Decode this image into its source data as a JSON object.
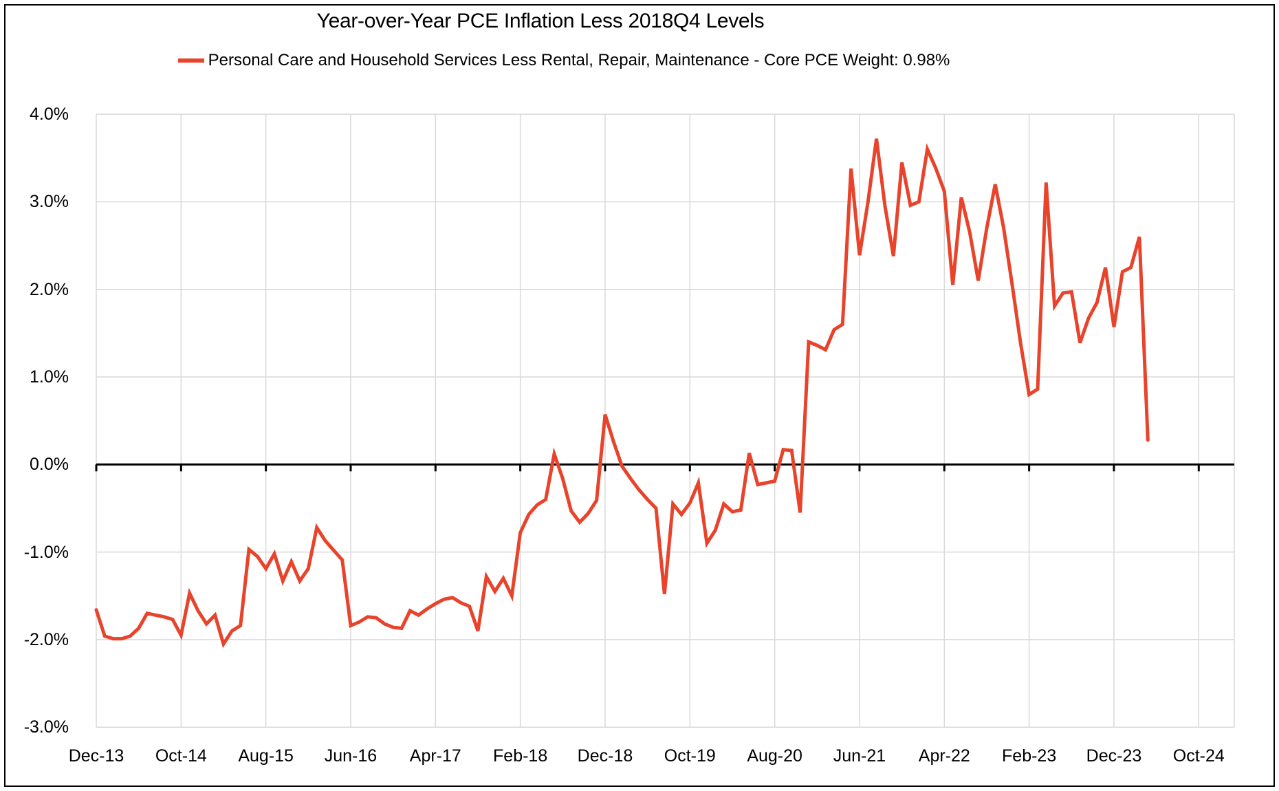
{
  "title": "Year-over-Year PCE Inflation Less 2018Q4 Levels",
  "legend": {
    "label": "Personal Care and Household Services Less Rental, Repair, Maintenance - Core PCE Weight: 0.98%",
    "color": "#E8432B"
  },
  "chart_data": {
    "type": "line",
    "title": "Year-over-Year PCE Inflation Less 2018Q4 Levels",
    "xlabel": "",
    "ylabel": "",
    "grid": true,
    "zero_axis": true,
    "legend_position": "top",
    "ylim": [
      -3.0,
      4.0
    ],
    "y_ticks": [
      {
        "value": 4.0,
        "label": "4.0%"
      },
      {
        "value": 3.0,
        "label": "3.0%"
      },
      {
        "value": 2.0,
        "label": "2.0%"
      },
      {
        "value": 1.0,
        "label": "1.0%"
      },
      {
        "value": 0.0,
        "label": "0.0%"
      },
      {
        "value": -1.0,
        "label": "-1.0%"
      },
      {
        "value": -2.0,
        "label": "-2.0%"
      },
      {
        "value": -3.0,
        "label": "-3.0%"
      }
    ],
    "x_tick_labels": [
      "Dec-13",
      "Oct-14",
      "Aug-15",
      "Jun-16",
      "Apr-17",
      "Feb-18",
      "Dec-18",
      "Oct-19",
      "Aug-20",
      "Jun-21",
      "Apr-22",
      "Feb-23",
      "Dec-23",
      "Oct-24"
    ],
    "x_tick_interval_months": 10,
    "series": [
      {
        "name": "Personal Care and Household Services Less Rental, Repair, Maintenance - Core PCE Weight: 0.98%",
        "color": "#E8432B",
        "x_start": "Dec-13",
        "frequency": "monthly",
        "unit": "percent",
        "values": [
          -1.66,
          -1.96,
          -1.99,
          -1.99,
          -1.96,
          -1.87,
          -1.7,
          -1.72,
          -1.74,
          -1.77,
          -1.95,
          -1.47,
          -1.67,
          -1.82,
          -1.72,
          -2.05,
          -1.9,
          -1.84,
          -0.97,
          -1.05,
          -1.19,
          -1.02,
          -1.33,
          -1.11,
          -1.33,
          -1.19,
          -0.72,
          -0.87,
          -0.98,
          -1.09,
          -1.84,
          -1.8,
          -1.74,
          -1.75,
          -1.82,
          -1.86,
          -1.87,
          -1.67,
          -1.72,
          -1.65,
          -1.59,
          -1.54,
          -1.52,
          -1.58,
          -1.62,
          -1.9,
          -1.28,
          -1.45,
          -1.3,
          -1.5,
          -0.78,
          -0.57,
          -0.46,
          -0.4,
          0.12,
          -0.16,
          -0.53,
          -0.66,
          -0.56,
          -0.41,
          0.57,
          0.26,
          -0.02,
          -0.16,
          -0.29,
          -0.4,
          -0.5,
          -1.48,
          -0.45,
          -0.57,
          -0.44,
          -0.21,
          -0.9,
          -0.75,
          -0.45,
          -0.54,
          -0.52,
          0.13,
          -0.23,
          -0.21,
          -0.19,
          0.17,
          0.16,
          -0.55,
          1.4,
          1.36,
          1.31,
          1.54,
          1.6,
          3.38,
          2.39,
          3.0,
          3.72,
          2.95,
          2.38,
          3.45,
          2.96,
          3.0,
          3.6,
          3.38,
          3.12,
          2.05,
          3.05,
          2.65,
          2.1,
          2.7,
          3.2,
          2.7,
          2.05,
          1.38,
          0.8,
          0.86,
          3.22,
          1.81,
          1.96,
          1.97,
          1.39,
          1.67,
          1.85,
          2.25,
          1.57,
          2.2,
          2.25,
          2.6,
          0.28
        ]
      }
    ]
  },
  "colors": {
    "line": "#E8432B",
    "gridline": "#D9D9D9",
    "axis": "#000000",
    "background": "#FFFFFF"
  }
}
